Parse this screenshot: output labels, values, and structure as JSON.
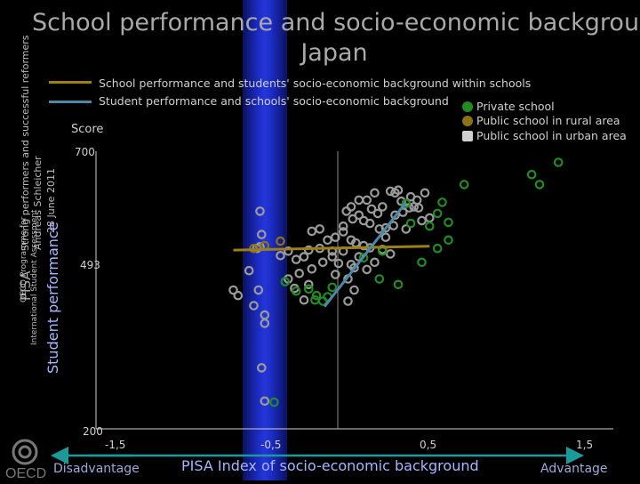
{
  "title_line1": "School performance and socio-economic background",
  "title_line2": "Japan",
  "side_text": {
    "pisa": "PISA",
    "slogan": "Strong performers and successful reformers",
    "author": "Andreas Schleicher",
    "date": "28 June 2011",
    "programme1": "OECD Programme for",
    "programme2": "International Student Assessment",
    "logo": "OECD"
  },
  "colors": {
    "private": "#228b22",
    "rural": "#8a7215",
    "urban": "#9a9a9a",
    "within_line": "#9c8016",
    "between_line": "#4a8aa8",
    "band": "#1b2bbd"
  },
  "chart_data": {
    "type": "scatter",
    "title": "School performance and socio-economic background",
    "subtitle": "Japan",
    "xlabel": "PISA Index of socio-economic background",
    "ylabel": "Student performance",
    "ylabel_top": "Score",
    "x_left_label": "Disadvantage",
    "x_right_label": "Advantage",
    "xlim": [
      -1.5,
      1.5
    ],
    "ylim": [
      200,
      700
    ],
    "x_ticks": [
      "-1,5",
      "-0,5",
      "0,5",
      "1,5"
    ],
    "x_tick_values": [
      -1.5,
      -0.5,
      0.5,
      1.5
    ],
    "y_ticks": [
      "200",
      "493",
      "700"
    ],
    "y_tick_values": [
      200,
      493,
      700
    ],
    "reference_lines": {
      "x": 0.0,
      "y": 493
    },
    "lines": [
      {
        "name": "School performance and students' socio-economic background within schools",
        "points": [
          [
            -0.75,
            522
          ],
          [
            0.5,
            529
          ]
        ]
      },
      {
        "name": "Student performance and schools' socio-economic background",
        "points": [
          [
            -0.17,
            420
          ],
          [
            0.35,
            608
          ]
        ]
      }
    ],
    "series": [
      {
        "name": "Private school",
        "points": [
          [
            1.32,
            680
          ],
          [
            1.15,
            658
          ],
          [
            1.2,
            640
          ],
          [
            0.72,
            640
          ],
          [
            0.58,
            608
          ],
          [
            0.35,
            606
          ],
          [
            0.55,
            588
          ],
          [
            0.62,
            572
          ],
          [
            0.5,
            565
          ],
          [
            0.38,
            570
          ],
          [
            0.62,
            540
          ],
          [
            0.55,
            525
          ],
          [
            0.2,
            520
          ],
          [
            0.08,
            508
          ],
          [
            0.45,
            500
          ],
          [
            0.3,
            460
          ],
          [
            0.18,
            470
          ],
          [
            -0.12,
            455
          ],
          [
            -0.22,
            440
          ],
          [
            -0.35,
            448
          ],
          [
            -0.27,
            452
          ],
          [
            -0.23,
            432
          ],
          [
            -0.18,
            430
          ],
          [
            -0.15,
            438
          ],
          [
            -0.42,
            465
          ],
          [
            -0.49,
            248
          ]
        ]
      },
      {
        "name": "Public school in rural area",
        "points": [
          [
            -0.62,
            525
          ],
          [
            -0.45,
            538
          ],
          [
            -0.55,
            530
          ]
        ]
      },
      {
        "name": "Public school in urban area",
        "points": [
          [
            -0.58,
            592
          ],
          [
            -0.57,
            550
          ],
          [
            -0.58,
            528
          ],
          [
            -0.6,
            525
          ],
          [
            -0.59,
            450
          ],
          [
            -0.62,
            422
          ],
          [
            -0.55,
            405
          ],
          [
            -0.55,
            390
          ],
          [
            -0.57,
            310
          ],
          [
            -0.55,
            250
          ],
          [
            -0.72,
            440
          ],
          [
            -0.65,
            485
          ],
          [
            -0.75,
            450
          ],
          [
            0.3,
            630
          ],
          [
            0.28,
            625
          ],
          [
            0.25,
            628
          ],
          [
            0.38,
            618
          ],
          [
            0.42,
            612
          ],
          [
            0.32,
            610
          ],
          [
            0.47,
            625
          ],
          [
            0.15,
            625
          ],
          [
            0.1,
            612
          ],
          [
            0.05,
            612
          ],
          [
            0.0,
            600
          ],
          [
            0.4,
            600
          ],
          [
            0.43,
            598
          ],
          [
            0.37,
            598
          ],
          [
            0.2,
            600
          ],
          [
            -0.03,
            592
          ],
          [
            0.05,
            585
          ],
          [
            0.08,
            575
          ],
          [
            0.12,
            570
          ],
          [
            0.18,
            560
          ],
          [
            0.22,
            562
          ],
          [
            0.27,
            566
          ],
          [
            0.35,
            560
          ],
          [
            0.45,
            575
          ],
          [
            0.5,
            580
          ],
          [
            0.28,
            585
          ],
          [
            0.13,
            596
          ],
          [
            0.01,
            578
          ],
          [
            -0.05,
            565
          ],
          [
            -0.2,
            560
          ],
          [
            -0.25,
            556
          ],
          [
            -0.1,
            545
          ],
          [
            0.0,
            540
          ],
          [
            0.03,
            535
          ],
          [
            0.08,
            530
          ],
          [
            0.12,
            526
          ],
          [
            0.2,
            523
          ],
          [
            -0.05,
            520
          ],
          [
            -0.12,
            520
          ],
          [
            -0.2,
            525
          ],
          [
            -0.27,
            522
          ],
          [
            -0.35,
            505
          ],
          [
            -0.3,
            510
          ],
          [
            -0.4,
            520
          ],
          [
            -0.45,
            512
          ],
          [
            -0.18,
            500
          ],
          [
            -0.08,
            498
          ],
          [
            0.0,
            496
          ],
          [
            0.05,
            510
          ],
          [
            -0.25,
            488
          ],
          [
            -0.1,
            478
          ],
          [
            -0.02,
            470
          ],
          [
            0.02,
            490
          ],
          [
            0.15,
            500
          ],
          [
            0.25,
            515
          ],
          [
            -0.33,
            480
          ],
          [
            -0.27,
            460
          ],
          [
            -0.4,
            470
          ],
          [
            -0.05,
            555
          ],
          [
            0.22,
            545
          ],
          [
            0.33,
            590
          ],
          [
            0.17,
            588
          ],
          [
            -0.15,
            540
          ],
          [
            -0.12,
            510
          ],
          [
            -0.36,
            453
          ],
          [
            0.1,
            487
          ],
          [
            -0.3,
            432
          ],
          [
            -0.02,
            430
          ],
          [
            0.02,
            450
          ]
        ]
      }
    ]
  }
}
